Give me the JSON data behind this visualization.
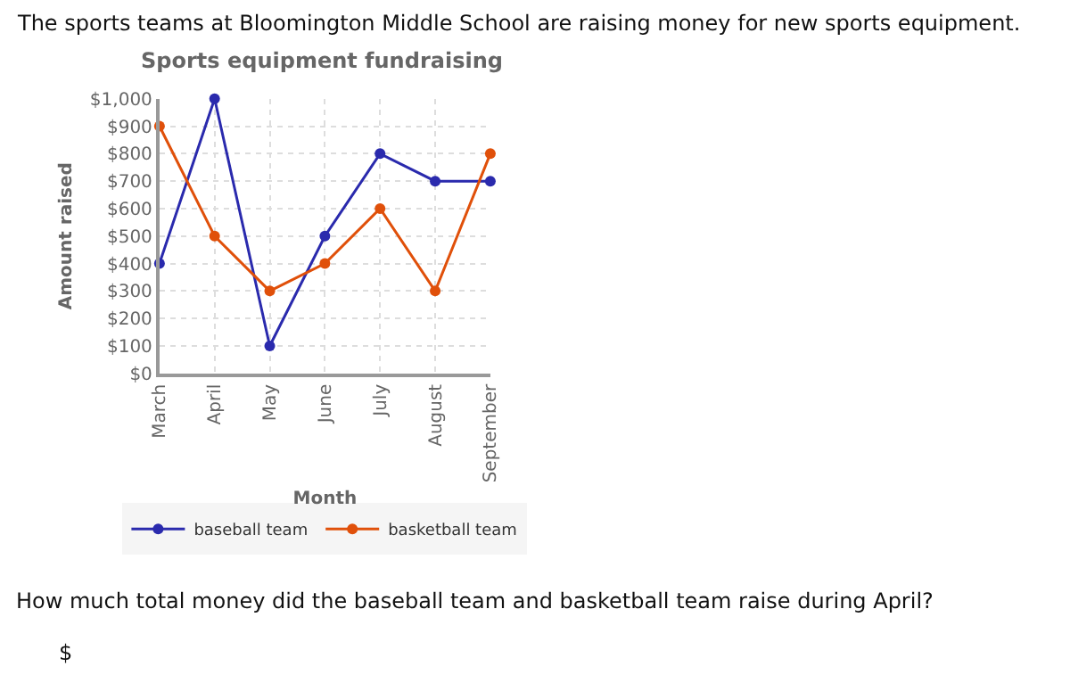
{
  "chart_data": {
    "type": "line",
    "title": "Sports equipment fundraising",
    "xlabel": "Month",
    "ylabel": "Amount raised",
    "categories": [
      "March",
      "April",
      "May",
      "June",
      "July",
      "August",
      "September"
    ],
    "series": [
      {
        "name": "baseball team",
        "color": "#2a2aad",
        "values": [
          400,
          1000,
          100,
          500,
          800,
          700,
          700
        ]
      },
      {
        "name": "basketball team",
        "color": "#e0500a",
        "values": [
          900,
          500,
          300,
          400,
          600,
          300,
          800
        ]
      }
    ],
    "ylim": [
      0,
      1000
    ],
    "yticks": [
      {
        "value": 0,
        "label": "$0"
      },
      {
        "value": 100,
        "label": "$100"
      },
      {
        "value": 200,
        "label": "$200"
      },
      {
        "value": 300,
        "label": "$300"
      },
      {
        "value": 400,
        "label": "$400"
      },
      {
        "value": 500,
        "label": "$500"
      },
      {
        "value": 600,
        "label": "$600"
      },
      {
        "value": 700,
        "label": "$700"
      },
      {
        "value": 800,
        "label": "$800"
      },
      {
        "value": 900,
        "label": "$900"
      },
      {
        "value": 1000,
        "label": "$1,000"
      }
    ],
    "grid": true,
    "legend": "bottom",
    "marker": "circle",
    "line_style": "solid",
    "annotations": [
      "The sports teams at Bloomington Middle School are raising money for new sports equipment.",
      "How much total money did the baseball team and basketball team raise during April?",
      "$"
    ]
  }
}
